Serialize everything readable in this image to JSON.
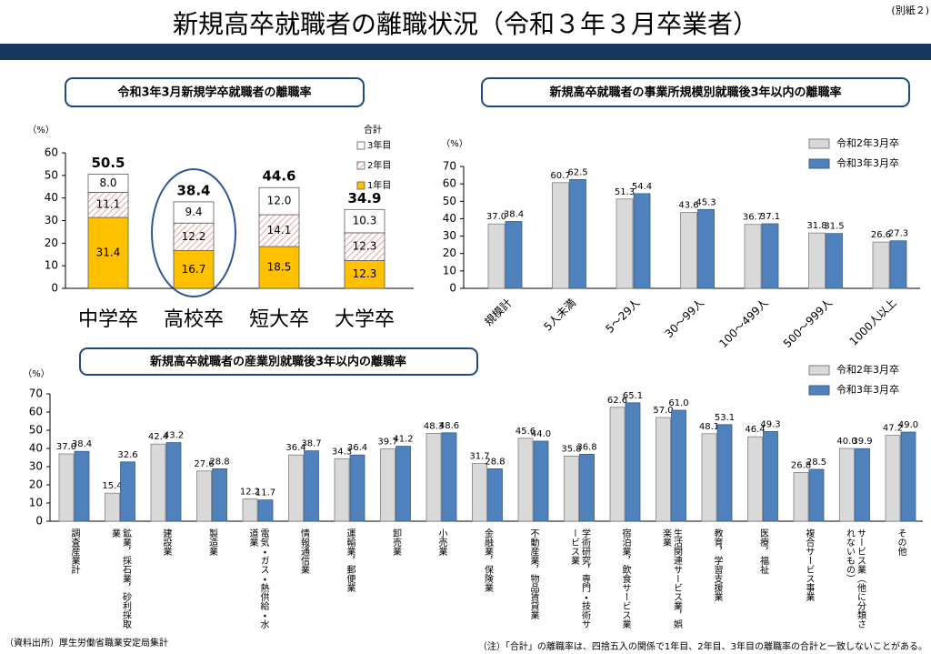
{
  "header": {
    "title": "新規高卒就職者の離職状況（令和３年３月卒業者）",
    "note": "(別紙２)"
  },
  "chart_data": [
    {
      "type": "stacked_bar",
      "title": "令和3年3月新規学卒就職者の離職率",
      "y_label": "（%）",
      "legend_title": "合計",
      "categories": [
        "中学卒",
        "高校卒",
        "短大卒",
        "大学卒"
      ],
      "series": [
        {
          "name": "1年目",
          "color": "#ffc000",
          "values": [
            31.4,
            16.7,
            18.5,
            12.3
          ],
          "value_labels": [
            "31.4",
            "16.7",
            "18.5",
            "12.3"
          ]
        },
        {
          "name": "2年目",
          "color": "#e6a5a3",
          "pattern": "hatch",
          "values": [
            11.1,
            12.2,
            14.1,
            12.3
          ],
          "value_labels": [
            "11.1",
            "12.2",
            "14.1",
            "12.3"
          ]
        },
        {
          "name": "3年目",
          "color": "#ffffff",
          "values": [
            8.0,
            9.4,
            12.0,
            10.3
          ],
          "value_labels": [
            "8.0",
            "9.4",
            "12.0",
            "10.3"
          ]
        }
      ],
      "totals": [
        50.5,
        38.4,
        44.6,
        34.9
      ],
      "ylim": [
        0,
        60
      ],
      "yticks": [
        0,
        10,
        20,
        30,
        40,
        50,
        60
      ]
    },
    {
      "type": "bar",
      "title": "新規高卒就職者の事業所規模別就職後3年以内の離職率",
      "y_label": "（%）",
      "categories": [
        "規模計",
        "5人未満",
        "5～29人",
        "30～99人",
        "100～499人",
        "500～999人",
        "1000人以上"
      ],
      "series": [
        {
          "name": "令和2年3月卒",
          "color": "#d9d9d9",
          "values": [
            37.0,
            60.7,
            51.3,
            43.6,
            36.7,
            31.8,
            26.6
          ],
          "value_labels": [
            "37.0",
            "60.7",
            "51.3",
            "43.6",
            "36.7",
            "31.8",
            "26.6"
          ]
        },
        {
          "name": "令和3年3月卒",
          "color": "#4f81bd",
          "values": [
            38.4,
            62.5,
            54.4,
            45.3,
            37.1,
            31.5,
            27.3
          ],
          "value_labels": [
            "38.4",
            "62.5",
            "54.4",
            "45.3",
            "37.1",
            "31.5",
            "27.3"
          ]
        }
      ],
      "ylim": [
        0,
        70
      ],
      "yticks": [
        0,
        10,
        20,
        30,
        40,
        50,
        60,
        70
      ]
    },
    {
      "type": "bar",
      "title": "新規高卒就職者の産業別就職後3年以内の離職率",
      "y_label": "（%）",
      "categories": [
        "調査産業計",
        "鉱業，採石業，砂利採取業",
        "建設業",
        "製造業",
        "電気・ガス・熱供給・水道業",
        "情報通信業",
        "運輸業，郵便業",
        "卸売業",
        "小売業",
        "金融業，保険業",
        "不動産業，物品賃貸業",
        "学術研究，専門・技術サービス業",
        "宿泊業，飲食サービス業",
        "生活関連サービス業，娯楽業",
        "教育，学習支援業",
        "医療，福祉",
        "複合サービス事業",
        "サービス業（他に分類されないもの）",
        "その他"
      ],
      "series": [
        {
          "name": "令和2年3月卒",
          "color": "#d9d9d9",
          "values": [
            37.0,
            15.4,
            42.4,
            27.6,
            12.2,
            36.4,
            34.3,
            39.7,
            48.3,
            31.7,
            45.6,
            35.8,
            62.6,
            57.0,
            48.1,
            46.4,
            26.8,
            40.0,
            47.2
          ],
          "value_labels": [
            "37.0",
            "15.4",
            "42.4",
            "27.6",
            "12.2",
            "36.4",
            "34.3",
            "39.7",
            "48.3",
            "31.7",
            "45.6",
            "35.8",
            "62.6",
            "57.0",
            "48.1",
            "46.4",
            "26.8",
            "40.0",
            "47.2"
          ]
        },
        {
          "name": "令和3年3月卒",
          "color": "#4f81bd",
          "values": [
            38.4,
            32.6,
            43.2,
            28.8,
            11.7,
            38.7,
            36.4,
            41.2,
            48.6,
            28.8,
            44.0,
            36.8,
            65.1,
            61.0,
            53.1,
            49.3,
            28.5,
            39.9,
            49.0
          ],
          "value_labels": [
            "38.4",
            "32.6",
            "43.2",
            "28.8",
            "11.7",
            "38.7",
            "36.4",
            "41.2",
            "48.6",
            "28.8",
            "44.0",
            "36.8",
            "65.1",
            "61.0",
            "53.1",
            "49.3",
            "28.5",
            "39.9",
            "49.0"
          ]
        }
      ],
      "ylim": [
        0,
        70
      ],
      "yticks": [
        0,
        10,
        20,
        30,
        40,
        50,
        60,
        70
      ]
    }
  ],
  "footer": {
    "source": "（資料出所）厚生労働省職業安定局集計",
    "note": "（注）「合計」の離職率は、四捨五入の関係で1年目、2年目、3年目の離職率の合計と一致しないことがある。"
  }
}
